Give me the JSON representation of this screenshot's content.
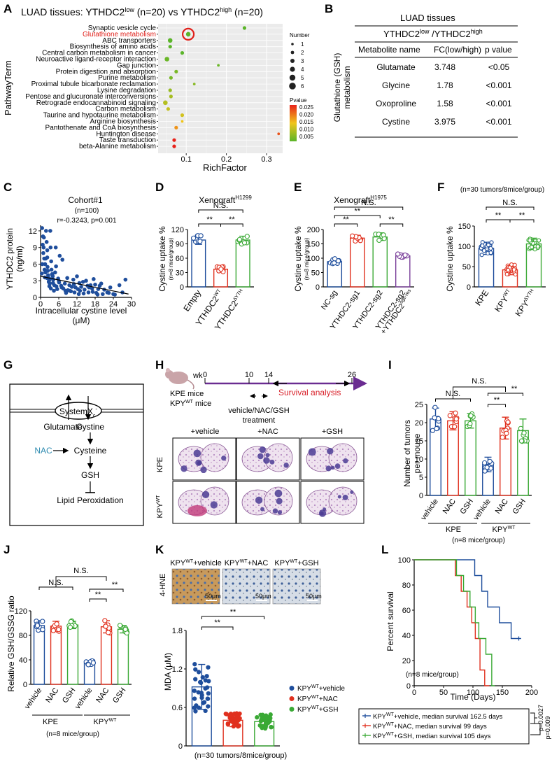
{
  "panel_letters": [
    "A",
    "B",
    "C",
    "D",
    "E",
    "F",
    "G",
    "H",
    "I",
    "J",
    "K",
    "L"
  ],
  "colors": {
    "blue": "#1f4e9c",
    "red": "#e0301e",
    "green": "#3aa935",
    "purple": "#7a3f9a",
    "nac": "#2e8bb0",
    "survival": "#6a2c91"
  },
  "panelA": {
    "title": "LUAD tissues: YTHDC2",
    "title_sup1": "low",
    "title_mid": " (n=20) vs YTHDC2",
    "title_sup2": "high",
    "title_end": " (n=20)",
    "ylabel": "PathwayTerm",
    "xlabel": "RichFactor",
    "highlight": "Glutathione metabolism",
    "size_legend_title": "Number",
    "size_legend": [
      "1",
      "2",
      "3",
      "4",
      "5",
      "6"
    ],
    "color_legend_title": "Pvalue",
    "color_legend": [
      "0.025",
      "0.020",
      "0.015",
      "0.010",
      "0.005"
    ]
  },
  "panelB": {
    "title": "LUAD tissues",
    "subtitle": "YTHDC2",
    "sub_sup1": "low",
    "sub_mid": " /YTHDC2",
    "sub_sup2": "high",
    "side_label_1": "Glutathione (GSH)",
    "side_label_2": "metabolism",
    "headers": [
      "Metabolite name",
      "FC(low/high)",
      "p value"
    ],
    "rows": [
      [
        "Glutamate",
        "3.748",
        "<0.05"
      ],
      [
        "Glycine",
        "1.78",
        "<0.001"
      ],
      [
        "Oxoproline",
        "1.58",
        "<0.001"
      ],
      [
        "Cystine",
        "3.975",
        "<0.001"
      ]
    ]
  },
  "panelC": {
    "title": "Cohort#1",
    "n": "(n=100)",
    "stat": "r=-0.3243, p=0.001",
    "ylabel_1": "YTHDC2 protein",
    "ylabel_2": "(ng/ml)",
    "xlabel_1": "Intracellular cystine level",
    "xlabel_2": "(μM)"
  },
  "panelD": {
    "title": "Xenograft",
    "title_sup": "H1299",
    "ylabel": "Cystine uptake %",
    "ylabel_sub": "(n=8 mice/group)",
    "ns": "N.S.",
    "sig": "**"
  },
  "panelE": {
    "title": "Xenograft",
    "title_sup": "H1975",
    "ylabel": "Cystine uptake %",
    "ylabel_sub": "(n=8 mice/group)",
    "ns": "N.S.",
    "sig": "**"
  },
  "panelF": {
    "title": "(n=30 tumors/8mice/group)",
    "ylabel": "Cystine uptake %",
    "ns": "N.S.",
    "sig": "**"
  },
  "panelG": {
    "transporter": "SystemX",
    "transporter_sub": "c",
    "transporter_sup": "-",
    "glutamate": "Glutamate",
    "cystine": "Cystine",
    "nac": "NAC",
    "cysteine": "Cysteine",
    "gsh": "GSH",
    "lipid": "Lipid Peroxidation"
  },
  "panelH": {
    "wk": "wk",
    "t0": "0",
    "t10": "10",
    "t14": "14",
    "t26": "26",
    "survival": "Survival analysis",
    "mice1": "KPE mice",
    "mice2": "KPY",
    "mice2_sup": "WT",
    "mice2_end": " mice",
    "treatment_1": "vehicle/NAC/GSH",
    "treatment_2": "treatment",
    "cols": [
      "+vehicle",
      "+NAC",
      "+GSH"
    ],
    "row1": "KPE",
    "row2": "KPY",
    "row2_sup": "WT"
  },
  "panelI": {
    "ylabel_1": "Number of tumors",
    "ylabel_2": "per mouse",
    "ns": "N.S.",
    "sig": "**",
    "group1": "KPE",
    "group2": "KPY",
    "group2_sup": "WT",
    "footnote": "(n=8 mice/group)"
  },
  "panelJ": {
    "ylabel": "Relative GSH/GSSG ratio",
    "ns": "N.S.",
    "sig": "**",
    "group1": "KPE",
    "group2": "KPY",
    "group2_sup": "WT",
    "footnote": "(n=8 mice/group)"
  },
  "panelK": {
    "stain": "4-HNE",
    "scale": "50μm",
    "images": [
      "KPY|WT|+vehicle",
      "KPY|WT|+NAC",
      "KPY|WT|+GSH"
    ],
    "ylabel": "MDA (μM)",
    "sig": "**",
    "legend": [
      "+vehicle",
      "+NAC",
      "+GSH"
    ],
    "legend_prefix": "KPY",
    "legend_sup": "WT",
    "footnote": "(n=30 tumors/8mice/group)"
  },
  "panelL": {
    "ylabel": "Percent survival",
    "xlabel": "Time (Days)",
    "inset": "(n=8 mice/group)",
    "legend": [
      "+vehicle, median survival 162.5 days",
      "+NAC, median survival 99 days",
      "+GSH, median survival 105 days"
    ],
    "legend_prefix": "KPY",
    "legend_sup": "WT",
    "p1": "p=0.0027",
    "p2": "p=0.009"
  },
  "chart_data": [
    {
      "panel": "A",
      "type": "scatter",
      "title": "LUAD tissues: YTHDC2low (n=20) vs YTHDC2high (n=20)",
      "xlabel": "RichFactor",
      "ylabel": "PathwayTerm",
      "xlim": [
        0.03,
        0.34
      ],
      "xticks": [
        "0.1",
        "0.2",
        "0.3"
      ],
      "categories": [
        "Synaptic vesicle cycle",
        "Glutathione metabolism",
        "ABC transporters",
        "Biosynthesis of amino acids",
        "Central carbon metabolism in cancer",
        "Neuroactive ligand-receptor interaction",
        "Gap junction",
        "Protein digestion and absorption",
        "Purine metabolism",
        "Proximal tubule bicarbonate reclamation",
        "Lysine degradation",
        "Pentose and glucuronate interconversions",
        "Retrograde endocannabinoid signaling",
        "Carbon metabolism",
        "Taurine and hypotaurine metabolism",
        "Arginine biosynthesis",
        "Pantothenate and CoA biosynthesis",
        "Huntington disease",
        "Taste transduction",
        "beta-Alanine metabolism"
      ],
      "x": [
        0.245,
        0.105,
        0.06,
        0.06,
        0.09,
        0.052,
        0.18,
        0.075,
        0.062,
        0.12,
        0.06,
        0.062,
        0.048,
        0.055,
        0.09,
        0.09,
        0.075,
        0.33,
        0.07,
        0.07
      ],
      "count": [
        2,
        3,
        3,
        2,
        2,
        3,
        1,
        2,
        2,
        1,
        2,
        2,
        3,
        2,
        2,
        1,
        2,
        1,
        2,
        2
      ],
      "pvalue": [
        0.003,
        0.003,
        0.004,
        0.005,
        0.005,
        0.006,
        0.006,
        0.007,
        0.007,
        0.008,
        0.009,
        0.01,
        0.011,
        0.012,
        0.013,
        0.015,
        0.018,
        0.022,
        0.025,
        0.025
      ],
      "color_scale": {
        "low": 0.005,
        "high": 0.025
      }
    },
    {
      "panel": "B",
      "type": "table",
      "columns": [
        "Metabolite name",
        "FC(low/high)",
        "p value"
      ],
      "rows": [
        [
          "Glutamate",
          "3.748",
          "<0.05"
        ],
        [
          "Glycine",
          "1.78",
          "<0.001"
        ],
        [
          "Oxoproline",
          "1.58",
          "<0.001"
        ],
        [
          "Cystine",
          "3.975",
          "<0.001"
        ]
      ]
    },
    {
      "panel": "C",
      "type": "scatter",
      "xlabel": "Intracellular cystine level (μM)",
      "ylabel": "YTHDC2 protein (ng/ml)",
      "xlim": [
        0,
        30
      ],
      "ylim": [
        0,
        13
      ],
      "xticks": [
        0,
        6,
        12,
        18,
        24,
        30
      ],
      "yticks": [
        0,
        3,
        6,
        9,
        12
      ],
      "fit": {
        "x": [
          0,
          29
        ],
        "y": [
          3.8,
          0.6
        ]
      },
      "x": [
        0.5,
        0.8,
        1,
        1.2,
        1.5,
        1.6,
        1.8,
        2,
        2.2,
        2.3,
        2.5,
        2.6,
        2.8,
        3,
        3.2,
        3.3,
        3.5,
        3.8,
        4,
        4.2,
        4.5,
        4.8,
        5,
        5.2,
        5.5,
        6,
        6.3,
        6.8,
        7,
        7.5,
        8,
        8.2,
        8.8,
        9,
        9.5,
        10,
        10.3,
        10.8,
        11,
        11.5,
        12,
        12.3,
        12.8,
        13,
        13.4,
        14,
        14.5,
        15,
        15.5,
        16,
        16.5,
        17,
        17.5,
        18,
        18.4,
        19,
        19.5,
        20,
        21,
        22,
        23,
        24,
        26,
        27,
        28,
        0.6,
        1.3,
        2.1,
        2.7,
        3.4,
        4.1,
        0.9,
        1.7,
        2.4,
        3.1,
        5.1,
        6.1,
        7.2,
        8.4,
        9.6,
        11.2,
        12.6,
        14.2,
        15.8,
        17.2,
        18.8,
        20.5,
        22.5,
        24.5,
        1.1,
        1.9,
        2.9,
        3.6,
        4.4,
        5.8,
        0.4,
        0.7,
        1.4,
        2.2,
        3.9
      ],
      "y": [
        12.5,
        11,
        9,
        7,
        6,
        4.5,
        12,
        10,
        8.5,
        5.5,
        4,
        3.5,
        3,
        2.5,
        12,
        9,
        6.5,
        4.2,
        3.8,
        3.2,
        2.2,
        4.5,
        9,
        2,
        1.5,
        3,
        7.5,
        2.1,
        1.8,
        1.6,
        2.5,
        1.2,
        3.5,
        1.3,
        2.2,
        1.1,
        1.9,
        3.2,
        2.4,
        1.8,
        3.8,
        1.5,
        2.6,
        1.2,
        1.9,
        2.8,
        1.4,
        3,
        2.1,
        1.8,
        2.2,
        1.6,
        3.3,
        2.3,
        0.8,
        1.5,
        2.1,
        2.5,
        1.4,
        0.9,
        1.8,
        0.6,
        2.2,
        0.9,
        3.2,
        6,
        5,
        3.5,
        2.8,
        1.6,
        2.6,
        8,
        7,
        4.8,
        3.3,
        5.6,
        2.7,
        6.8,
        0.8,
        1.2,
        0.9,
        0.6,
        0.7,
        0.9,
        1,
        0.5,
        0.6,
        0.8,
        0.5,
        10.8,
        4.8,
        2,
        5,
        1.2,
        3.4,
        4.3,
        9.5,
        3.6,
        7.2,
        4
      ]
    },
    {
      "panel": "D",
      "type": "bar",
      "title": "XenograftH1299",
      "ylabel": "Cystine uptake % (n=8 mice/group)",
      "ylim": [
        0,
        120
      ],
      "yticks": [
        0,
        30,
        60,
        90,
        120
      ],
      "categories": [
        "Empty",
        "YTHDC2WT",
        "YTHDC2ΔYTH"
      ],
      "values": [
        98,
        37,
        98
      ],
      "errors": [
        9,
        6,
        8
      ]
    },
    {
      "panel": "E",
      "type": "bar",
      "title": "XenograftH1975",
      "ylabel": "Cystine uptake % (n=8 mice/group)",
      "ylim": [
        0,
        200
      ],
      "yticks": [
        0,
        50,
        100,
        150,
        200
      ],
      "categories": [
        "NC-sg",
        "YTHDC2-sg1",
        "YTHDC2-sg2",
        "YTHDC2-sg2+YTHDC2sg2-res"
      ],
      "values": [
        88,
        170,
        174,
        108
      ],
      "errors": [
        10,
        10,
        12,
        7
      ]
    },
    {
      "panel": "F",
      "type": "bar",
      "title": "(n=30 tumors/8mice/group)",
      "ylabel": "Cystine uptake %",
      "ylim": [
        0,
        150
      ],
      "yticks": [
        0,
        50,
        100,
        150
      ],
      "categories": [
        "KPE",
        "KPYWT",
        "KPYΔYTH"
      ],
      "values": [
        95,
        42,
        106
      ],
      "errors": [
        15,
        12,
        14
      ]
    },
    {
      "panel": "I",
      "type": "bar",
      "ylabel": "Number of tumors per mouse",
      "ylim": [
        0,
        25
      ],
      "yticks": [
        0,
        5,
        10,
        15,
        20,
        25
      ],
      "categories": [
        "vehicle",
        "NAC",
        "GSH",
        "vehicle",
        "NAC",
        "GSH"
      ],
      "groups": [
        "KPE",
        "KPE",
        "KPE",
        "KPYWT",
        "KPYWT",
        "KPYWT"
      ],
      "values": [
        21,
        20.5,
        20.5,
        8.5,
        18.5,
        17.8
      ],
      "errors": [
        3,
        2.5,
        2,
        2,
        3,
        3.2
      ]
    },
    {
      "panel": "J",
      "type": "bar",
      "ylabel": "Relative GSH/GSSG ratio",
      "ylim": [
        0,
        120
      ],
      "yticks": [
        0,
        40,
        80,
        120
      ],
      "categories": [
        "vehicle",
        "NAC",
        "GSH",
        "vehicle",
        "NAC",
        "GSH"
      ],
      "groups": [
        "KPE",
        "KPE",
        "KPE",
        "KPYWT",
        "KPYWT",
        "KPYWT"
      ],
      "values": [
        96,
        95,
        97,
        35,
        94,
        90
      ],
      "errors": [
        8,
        8,
        6,
        4,
        10,
        6
      ]
    },
    {
      "panel": "K",
      "type": "bar",
      "ylabel": "MDA (μM)",
      "ylim": [
        0,
        1.8
      ],
      "yticks": [
        0,
        0.6,
        1.2,
        1.8
      ],
      "categories": [
        "KPYWT+vehicle",
        "KPYWT+NAC",
        "KPYWT+GSH"
      ],
      "values": [
        0.92,
        0.4,
        0.38
      ],
      "errors": [
        0.35,
        0.1,
        0.1
      ]
    },
    {
      "panel": "L",
      "type": "line",
      "xlabel": "Time (Days)",
      "ylabel": "Percent survival",
      "xlim": [
        0,
        200
      ],
      "ylim": [
        0,
        100
      ],
      "xticks": [
        0,
        50,
        100,
        150,
        200
      ],
      "yticks": [
        0,
        20,
        40,
        60,
        80,
        100
      ],
      "series": [
        {
          "name": "KPYWT+vehicle, median survival 162.5 days",
          "x": [
            0,
            103,
            103,
            115,
            115,
            125,
            125,
            145,
            145,
            165,
            165,
            178,
            178,
            182
          ],
          "y": [
            100,
            100,
            87.5,
            87.5,
            75,
            75,
            62.5,
            62.5,
            50,
            50,
            37.5,
            37.5,
            37.5,
            37.5
          ]
        },
        {
          "name": "KPYWT+NAC, median survival 99 days",
          "x": [
            0,
            70,
            70,
            80,
            80,
            90,
            90,
            98,
            98,
            104,
            104,
            112,
            112,
            120,
            120,
            128
          ],
          "y": [
            100,
            100,
            87.5,
            87.5,
            75,
            75,
            62.5,
            62.5,
            50,
            50,
            37.5,
            37.5,
            12.5,
            12.5,
            0,
            0
          ]
        },
        {
          "name": "KPYWT+GSH, median survival 105 days",
          "x": [
            0,
            72,
            72,
            84,
            84,
            95,
            95,
            104,
            104,
            110,
            110,
            122,
            122,
            132,
            132,
            137
          ],
          "y": [
            100,
            100,
            87.5,
            87.5,
            75,
            75,
            62.5,
            62.5,
            50,
            50,
            37.5,
            37.5,
            25,
            25,
            0,
            0
          ]
        }
      ]
    }
  ]
}
